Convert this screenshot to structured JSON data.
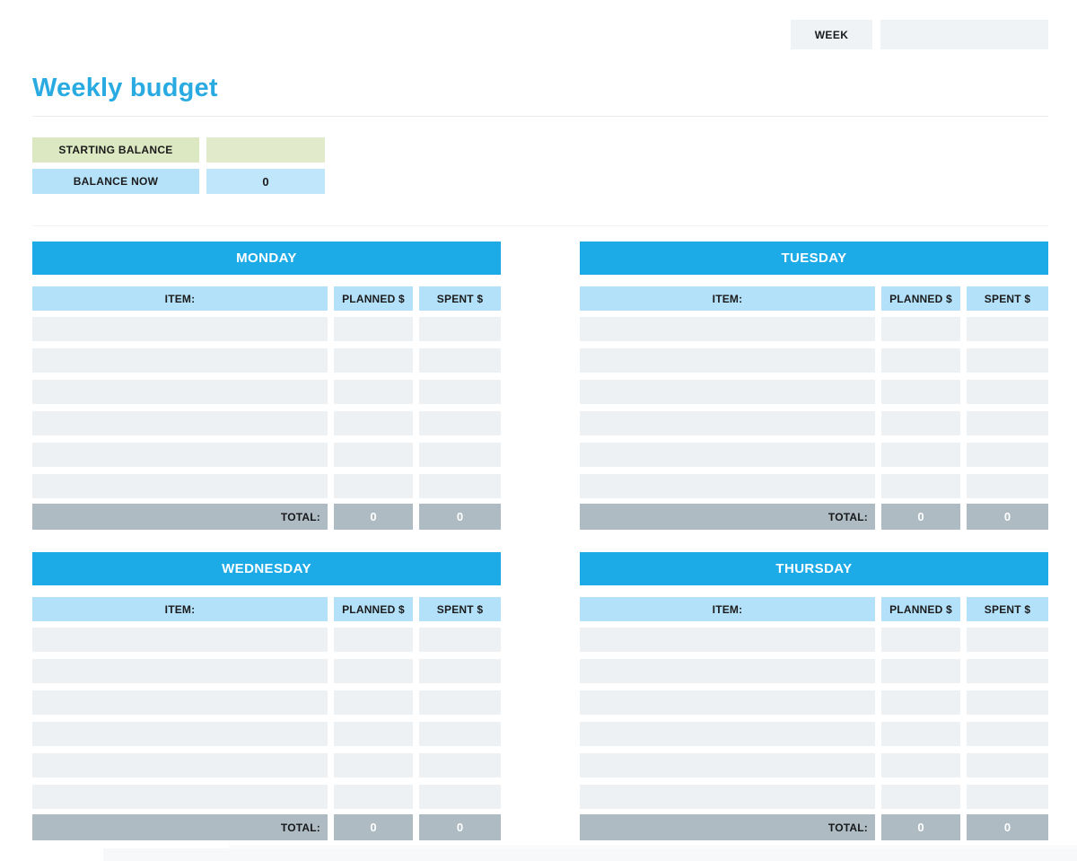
{
  "week_bar": {
    "label": "WEEK",
    "value": ""
  },
  "title": "Weekly budget",
  "balance": {
    "starting_label": "STARTING BALANCE",
    "starting_value": "",
    "now_label": "BALANCE NOW",
    "now_value": "0"
  },
  "table_columns": {
    "item": "ITEM:",
    "planned": "PLANNED $",
    "spent": "SPENT $"
  },
  "total_label": "TOTAL:",
  "rows_per_table": 6,
  "days": [
    {
      "title": "MONDAY",
      "total_planned": "0",
      "total_spent": "0"
    },
    {
      "title": "TUESDAY",
      "total_planned": "0",
      "total_spent": "0"
    },
    {
      "title": "WEDNESDAY",
      "total_planned": "0",
      "total_spent": "0"
    },
    {
      "title": "THURSDAY",
      "total_planned": "0",
      "total_spent": "0"
    }
  ],
  "colors": {
    "title_blue": "#29abe2",
    "day_header_blue": "#1dabe8",
    "column_header_blue": "#b3e1f9",
    "row_gray": "#eef1f4",
    "total_gray": "#aebbc3",
    "starting_balance_green": "#dbe8c2",
    "balance_now_blue": "#b5e2f9",
    "week_box_gray": "#eff3f6"
  }
}
